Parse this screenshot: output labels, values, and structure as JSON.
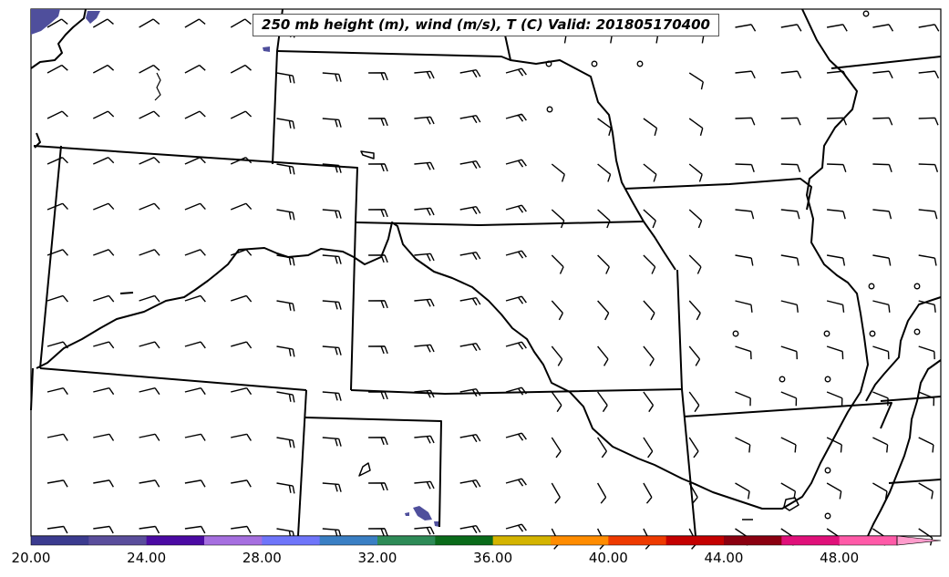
{
  "title": "250 mb height (m), wind (m/s), T (C) Valid: 201805170400",
  "colorbar": {
    "ticks": [
      "20.00",
      "24.00",
      "28.00",
      "32.00",
      "36.00",
      "40.00",
      "44.00",
      "48.00"
    ],
    "colors": [
      "#3b3b8f",
      "#5a4e9c",
      "#4b0aa3",
      "#a66fe0",
      "#6f75fa",
      "#3a7fc4",
      "#2e8b57",
      "#0a6b1a",
      "#d4b400",
      "#ff8c00",
      "#ee3a00",
      "#c40000",
      "#8b0010",
      "#e0107a",
      "#ff5aa8",
      "#ff9ccc"
    ]
  },
  "legend": {
    "barb_icon": "wind-barb-icon",
    "calm_icon": "calm-circle-icon"
  },
  "colors": {
    "fill": "#4f4f9c",
    "outline": "#000000"
  }
}
